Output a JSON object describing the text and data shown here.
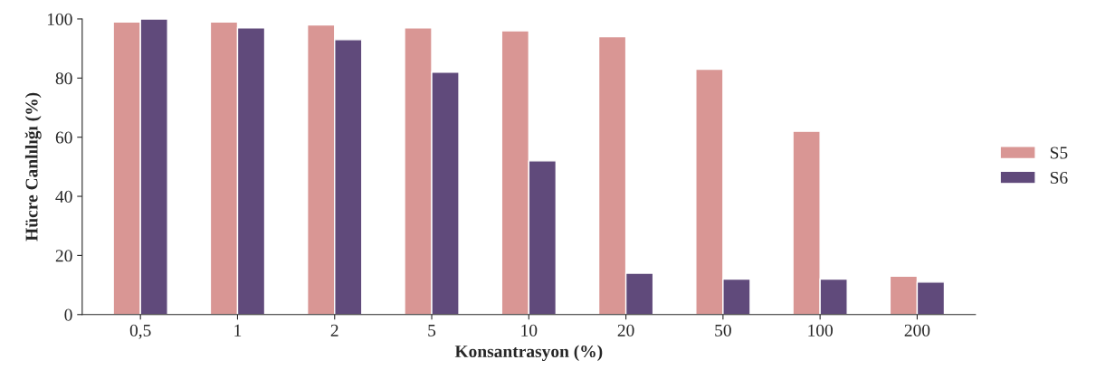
{
  "chart_data": {
    "type": "bar",
    "xlabel": "Konsantrasyon (%)",
    "ylabel": "Hücre Canlılığı (%)",
    "categories": [
      "0,5",
      "1",
      "2",
      "5",
      "10",
      "20",
      "50",
      "100",
      "200"
    ],
    "series": [
      {
        "name": "S5",
        "color": "#d99694",
        "values": [
          99,
          99,
          98,
          97,
          96,
          94,
          83,
          62,
          13
        ]
      },
      {
        "name": "S6",
        "color": "#604a7b",
        "values": [
          100,
          97,
          93,
          82,
          52,
          14,
          12,
          12,
          11
        ]
      }
    ],
    "ylim": [
      0,
      100
    ],
    "yticks": [
      0,
      20,
      40,
      60,
      80,
      100
    ],
    "grid": false,
    "legend": "right"
  }
}
